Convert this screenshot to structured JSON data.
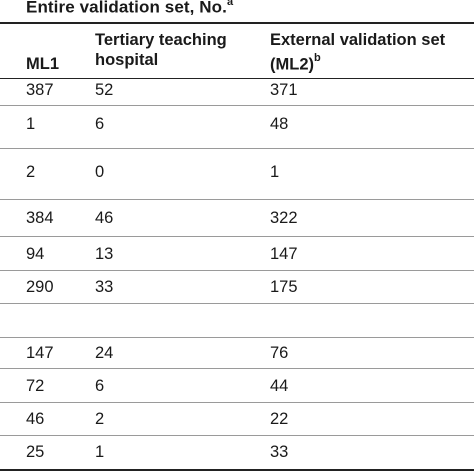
{
  "table": {
    "title": "Entire validation set, No.",
    "title_sup": "a",
    "headers": {
      "ml1": "ML1",
      "tertiary_line1": "Tertiary teaching",
      "tertiary_line2": "hospital",
      "external_line1": "External validation set",
      "external_line2": "(ML2)",
      "external_sup": "b"
    },
    "rows": [
      [
        "387",
        "52",
        "371"
      ],
      [
        "1",
        "6",
        "48"
      ],
      [
        "2",
        "0",
        "1"
      ],
      [
        "384",
        "46",
        "322"
      ],
      [
        "94",
        "13",
        "147"
      ],
      [
        "290",
        "33",
        "175"
      ],
      [
        "",
        "",
        ""
      ],
      [
        "147",
        "24",
        "76"
      ],
      [
        "72",
        "6",
        "44"
      ],
      [
        "46",
        "2",
        "22"
      ],
      [
        "25",
        "1",
        "33"
      ]
    ]
  }
}
